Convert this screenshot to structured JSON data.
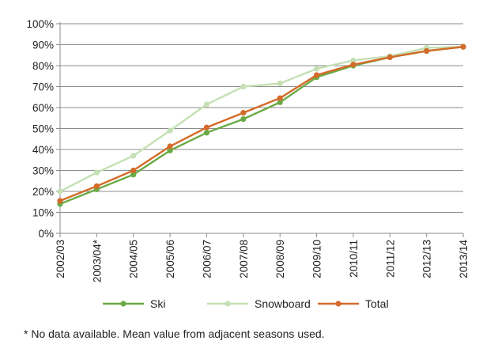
{
  "chart_data": {
    "type": "line",
    "title": "",
    "xlabel": "",
    "ylabel": "",
    "ylim": [
      0,
      100
    ],
    "y_tick_labels": [
      "0%",
      "10%",
      "20%",
      "30%",
      "40%",
      "50%",
      "60%",
      "70%",
      "80%",
      "90%",
      "100%"
    ],
    "categories": [
      "2002/03",
      "2003/04*",
      "2004/05",
      "2005/06",
      "2006/07",
      "2007/08",
      "2008/09",
      "2009/10",
      "2010/11",
      "2011/12",
      "2012/13",
      "2013/14"
    ],
    "grid": true,
    "legend_position": "bottom",
    "series": [
      {
        "name": "Ski",
        "color": "#6aaa45",
        "values": [
          14,
          21,
          28,
          39.5,
          48,
          54.5,
          62.5,
          74.5,
          80,
          84,
          87,
          89
        ]
      },
      {
        "name": "Snowboard",
        "color": "#c5e0b4",
        "values": [
          20,
          29,
          37,
          49,
          61.5,
          70,
          71.5,
          78.5,
          82.5,
          84.5,
          88.5,
          89
        ]
      },
      {
        "name": "Total",
        "color": "#d46b2a",
        "values": [
          15.5,
          22.5,
          30,
          41.5,
          50.5,
          57.5,
          64.5,
          75.5,
          80.5,
          84,
          87,
          89
        ]
      }
    ],
    "footnote": "* No data available. Mean value from adjacent seasons used."
  }
}
